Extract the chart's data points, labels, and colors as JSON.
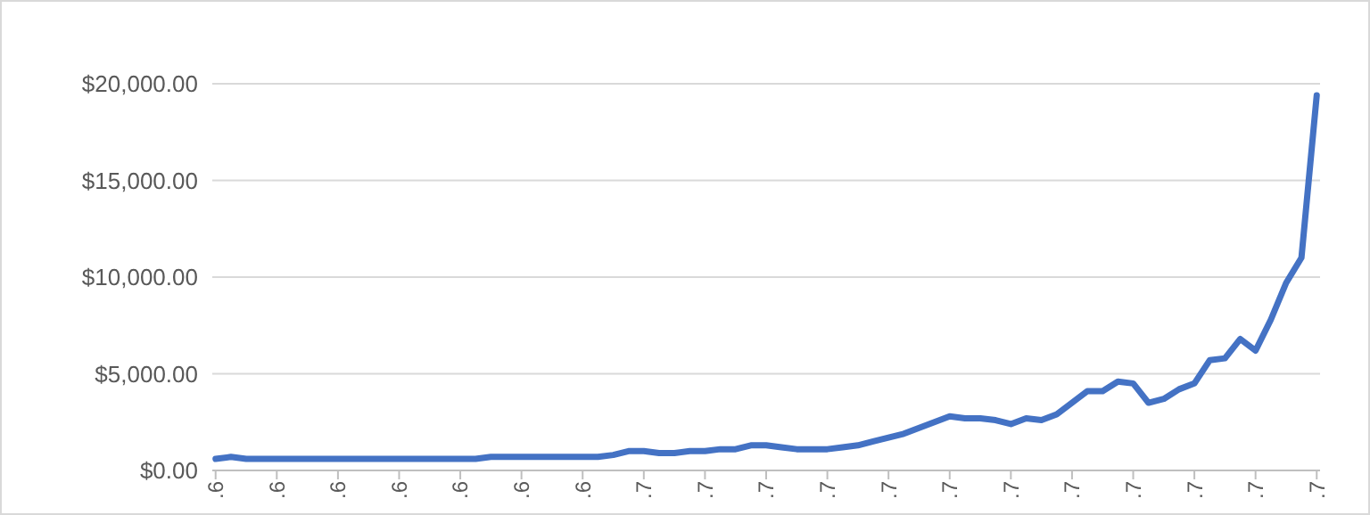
{
  "chart_data": {
    "type": "line",
    "categories": [
      ".6",
      null,
      null,
      null,
      ".6",
      null,
      null,
      null,
      ".6",
      null,
      null,
      null,
      ".6",
      null,
      null,
      null,
      ".6",
      null,
      null,
      null,
      ".6",
      null,
      null,
      null,
      ".6",
      null,
      null,
      null,
      ".7",
      null,
      null,
      null,
      ".7",
      null,
      null,
      null,
      ".7",
      null,
      null,
      null,
      ".7",
      null,
      null,
      null,
      ".7",
      null,
      null,
      null,
      ".7",
      null,
      null,
      null,
      ".7",
      null,
      null,
      null,
      ".7",
      null,
      null,
      null,
      ".7",
      null,
      null,
      null,
      ".7",
      null,
      null,
      null,
      ".7",
      null,
      null,
      null,
      ".7"
    ],
    "series": [
      {
        "color": "#4472c4",
        "values": [
          600,
          700,
          600,
          600,
          600,
          600,
          600,
          600,
          600,
          600,
          600,
          600,
          600,
          600,
          600,
          600,
          600,
          600,
          700,
          700,
          700,
          700,
          700,
          700,
          700,
          700,
          800,
          1000,
          1000,
          900,
          900,
          1000,
          1000,
          1100,
          1100,
          1300,
          1300,
          1200,
          1100,
          1100,
          1100,
          1200,
          1300,
          1500,
          1700,
          1900,
          2200,
          2500,
          2800,
          2700,
          2700,
          2600,
          2400,
          2700,
          2600,
          2900,
          3500,
          4100,
          4100,
          4600,
          4500,
          3500,
          3700,
          4200,
          4500,
          5700,
          5800,
          6800,
          6200,
          7800,
          9700,
          11000,
          19400
        ]
      }
    ],
    "ylim": [
      0,
      20000
    ],
    "yticks": [
      {
        "value": 0,
        "label": "$0.00"
      },
      {
        "value": 5000,
        "label": "$5,000.00"
      },
      {
        "value": 10000,
        "label": "$10,000.00"
      },
      {
        "value": 15000,
        "label": "$15,000.00"
      },
      {
        "value": 20000,
        "label": "$20,000.00"
      }
    ],
    "grid": "y",
    "marker": "none",
    "line_style": "solid"
  }
}
